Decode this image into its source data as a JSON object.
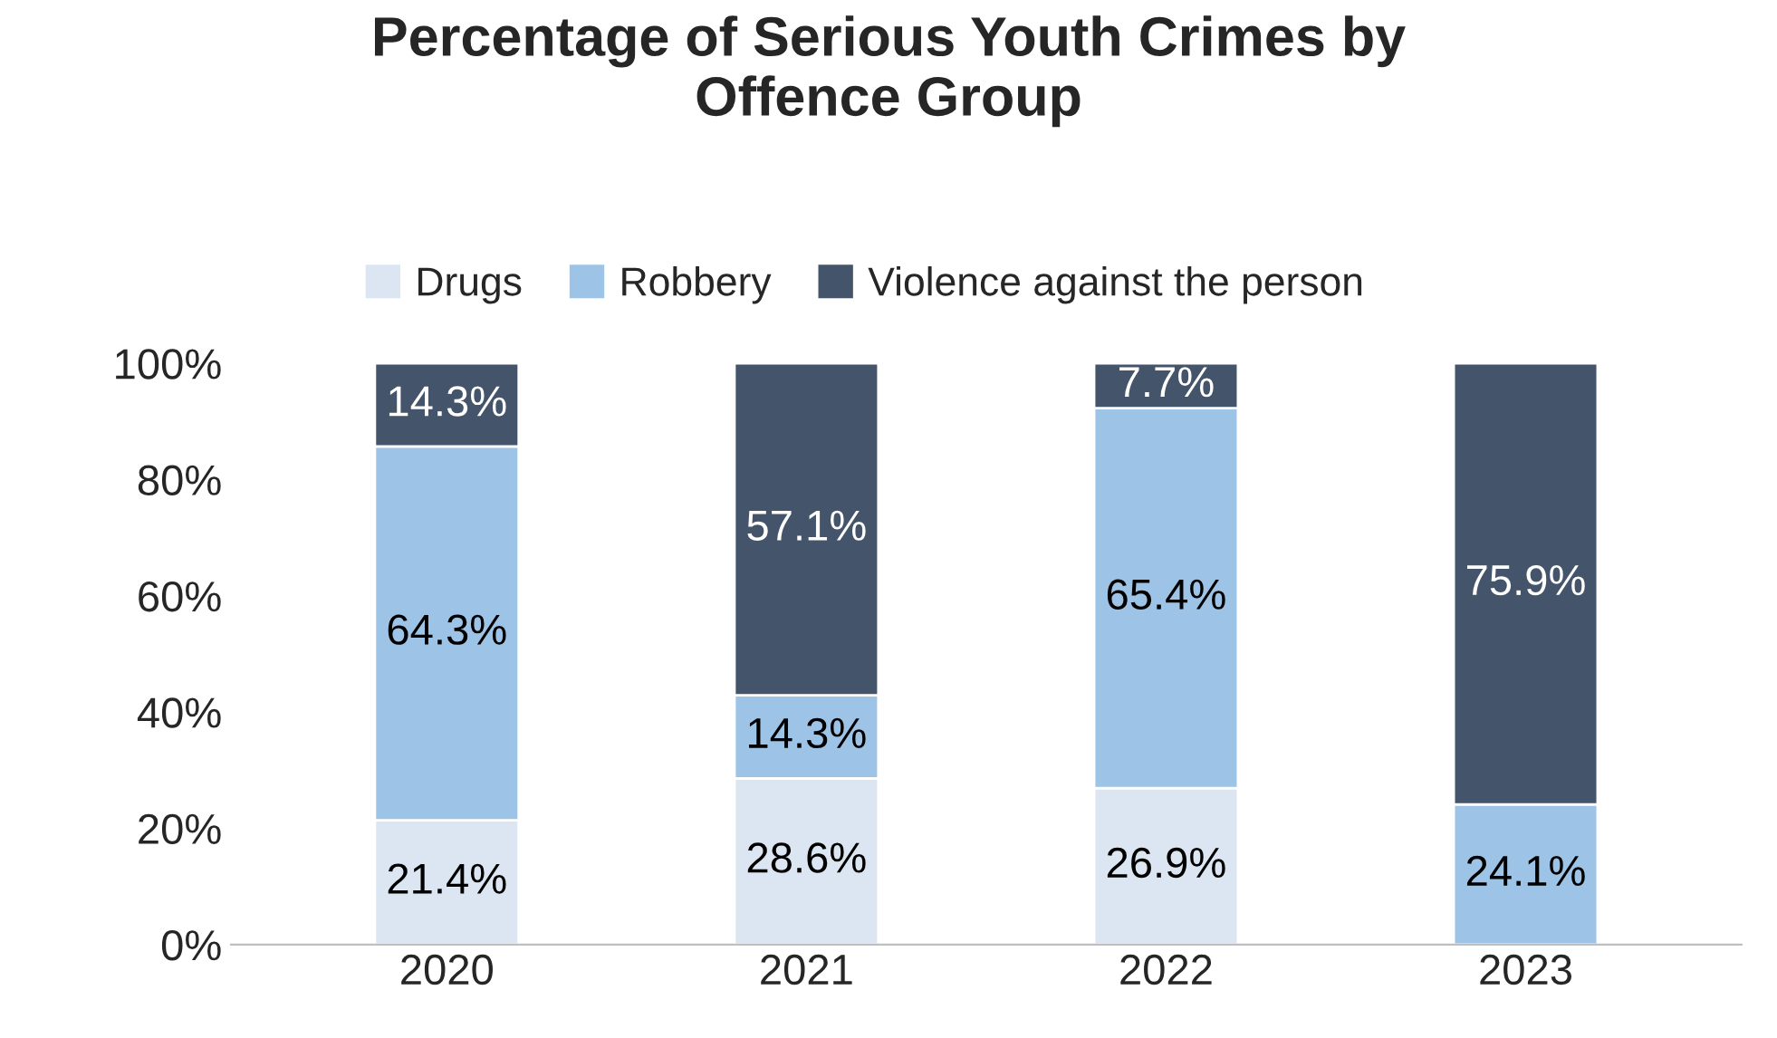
{
  "chart_data": {
    "type": "bar",
    "title": "Percentage of Serious Youth Crimes by\nOffence Group",
    "stacked": true,
    "categories": [
      "2020",
      "2021",
      "2022",
      "2023"
    ],
    "series": [
      {
        "name": "Drugs",
        "color": "#dce6f2",
        "values": [
          21.4,
          28.6,
          26.9,
          0
        ],
        "value_labels": [
          "21.4%",
          "28.6%",
          "26.9%",
          null
        ]
      },
      {
        "name": "Robbery",
        "color": "#9dc3e6",
        "values": [
          64.3,
          14.3,
          65.4,
          24.1
        ],
        "value_labels": [
          "64.3%",
          "14.3%",
          "65.4%",
          "24.1%"
        ]
      },
      {
        "name": "Violence against the person",
        "color": "#44546a",
        "values": [
          14.3,
          57.1,
          7.7,
          75.9
        ],
        "value_labels": [
          "14.3%",
          "57.1%",
          "7.7%",
          "75.9%"
        ]
      }
    ],
    "ylim": [
      0,
      100
    ],
    "yticks": [
      {
        "value": 0,
        "label": "0%"
      },
      {
        "value": 20,
        "label": "20%"
      },
      {
        "value": 40,
        "label": "40%"
      },
      {
        "value": 60,
        "label": "60%"
      },
      {
        "value": 80,
        "label": "80%"
      },
      {
        "value": 100,
        "label": "100%"
      }
    ],
    "grid": false,
    "legend": "top"
  }
}
